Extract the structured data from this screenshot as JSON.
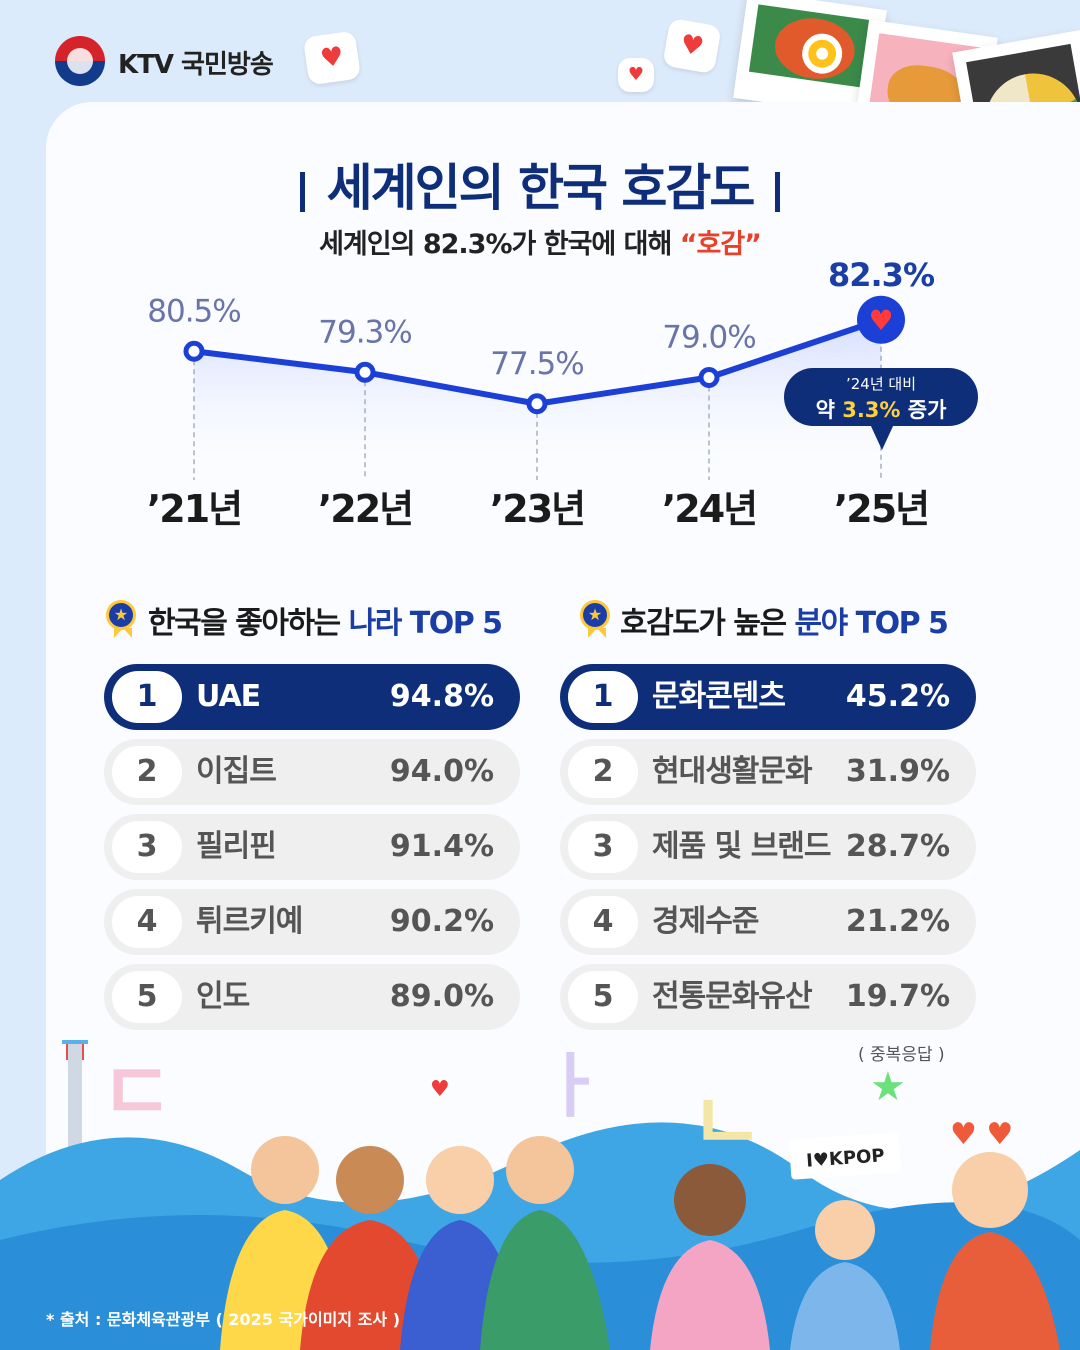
{
  "header": {
    "brand": "KTV 국민방송"
  },
  "title": "세계인의 한국 호감도",
  "subtitle": {
    "prefix": "세계인의 82.3%가 한국에 대해 ",
    "highlight": "“호감”"
  },
  "chart_data": {
    "type": "line",
    "categories": [
      "’21년",
      "’22년",
      "’23년",
      "’24년",
      "’25년"
    ],
    "values": [
      80.5,
      79.3,
      77.5,
      79.0,
      82.3
    ],
    "labels": [
      "80.5%",
      "79.3%",
      "77.5%",
      "79.0%",
      "82.3%"
    ],
    "title": "세계인의 한국 호감도",
    "ylim": [
      76,
      84
    ],
    "grid": false,
    "callout": {
      "line1": "’24년 대비",
      "line2_prefix": "약 ",
      "line2_value": "3.3%",
      "line2_suffix": " 증가"
    }
  },
  "colors": {
    "navy": "#0f2e7a",
    "line": "#1c3fd6",
    "accent": "#e8412a",
    "gray_row": "#efefef"
  },
  "countries": {
    "title_prefix": "한국을 좋아하는 ",
    "title_highlight": "나라 TOP 5",
    "items": [
      {
        "rank": "1",
        "name": "UAE",
        "value": "94.8%"
      },
      {
        "rank": "2",
        "name": "이집트",
        "value": "94.0%"
      },
      {
        "rank": "3",
        "name": "필리핀",
        "value": "91.4%"
      },
      {
        "rank": "4",
        "name": "튀르키예",
        "value": "90.2%"
      },
      {
        "rank": "5",
        "name": "인도",
        "value": "89.0%"
      }
    ]
  },
  "fields": {
    "title_prefix": "호감도가 높은 ",
    "title_highlight": "분야 TOP 5",
    "items": [
      {
        "rank": "1",
        "name": "문화콘텐츠",
        "value": "45.2%"
      },
      {
        "rank": "2",
        "name": "현대생활문화",
        "value": "31.9%"
      },
      {
        "rank": "3",
        "name": "제품 및 브랜드",
        "value": "28.7%"
      },
      {
        "rank": "4",
        "name": "경제수준",
        "value": "21.2%"
      },
      {
        "rank": "5",
        "name": "전통문화유산",
        "value": "19.7%"
      }
    ]
  },
  "note": "( 중복응답 )",
  "sign_text": "I♥KPOP",
  "source": "* 출처 : 문화체육관광부 ( 2025 국가이미지 조사 )"
}
